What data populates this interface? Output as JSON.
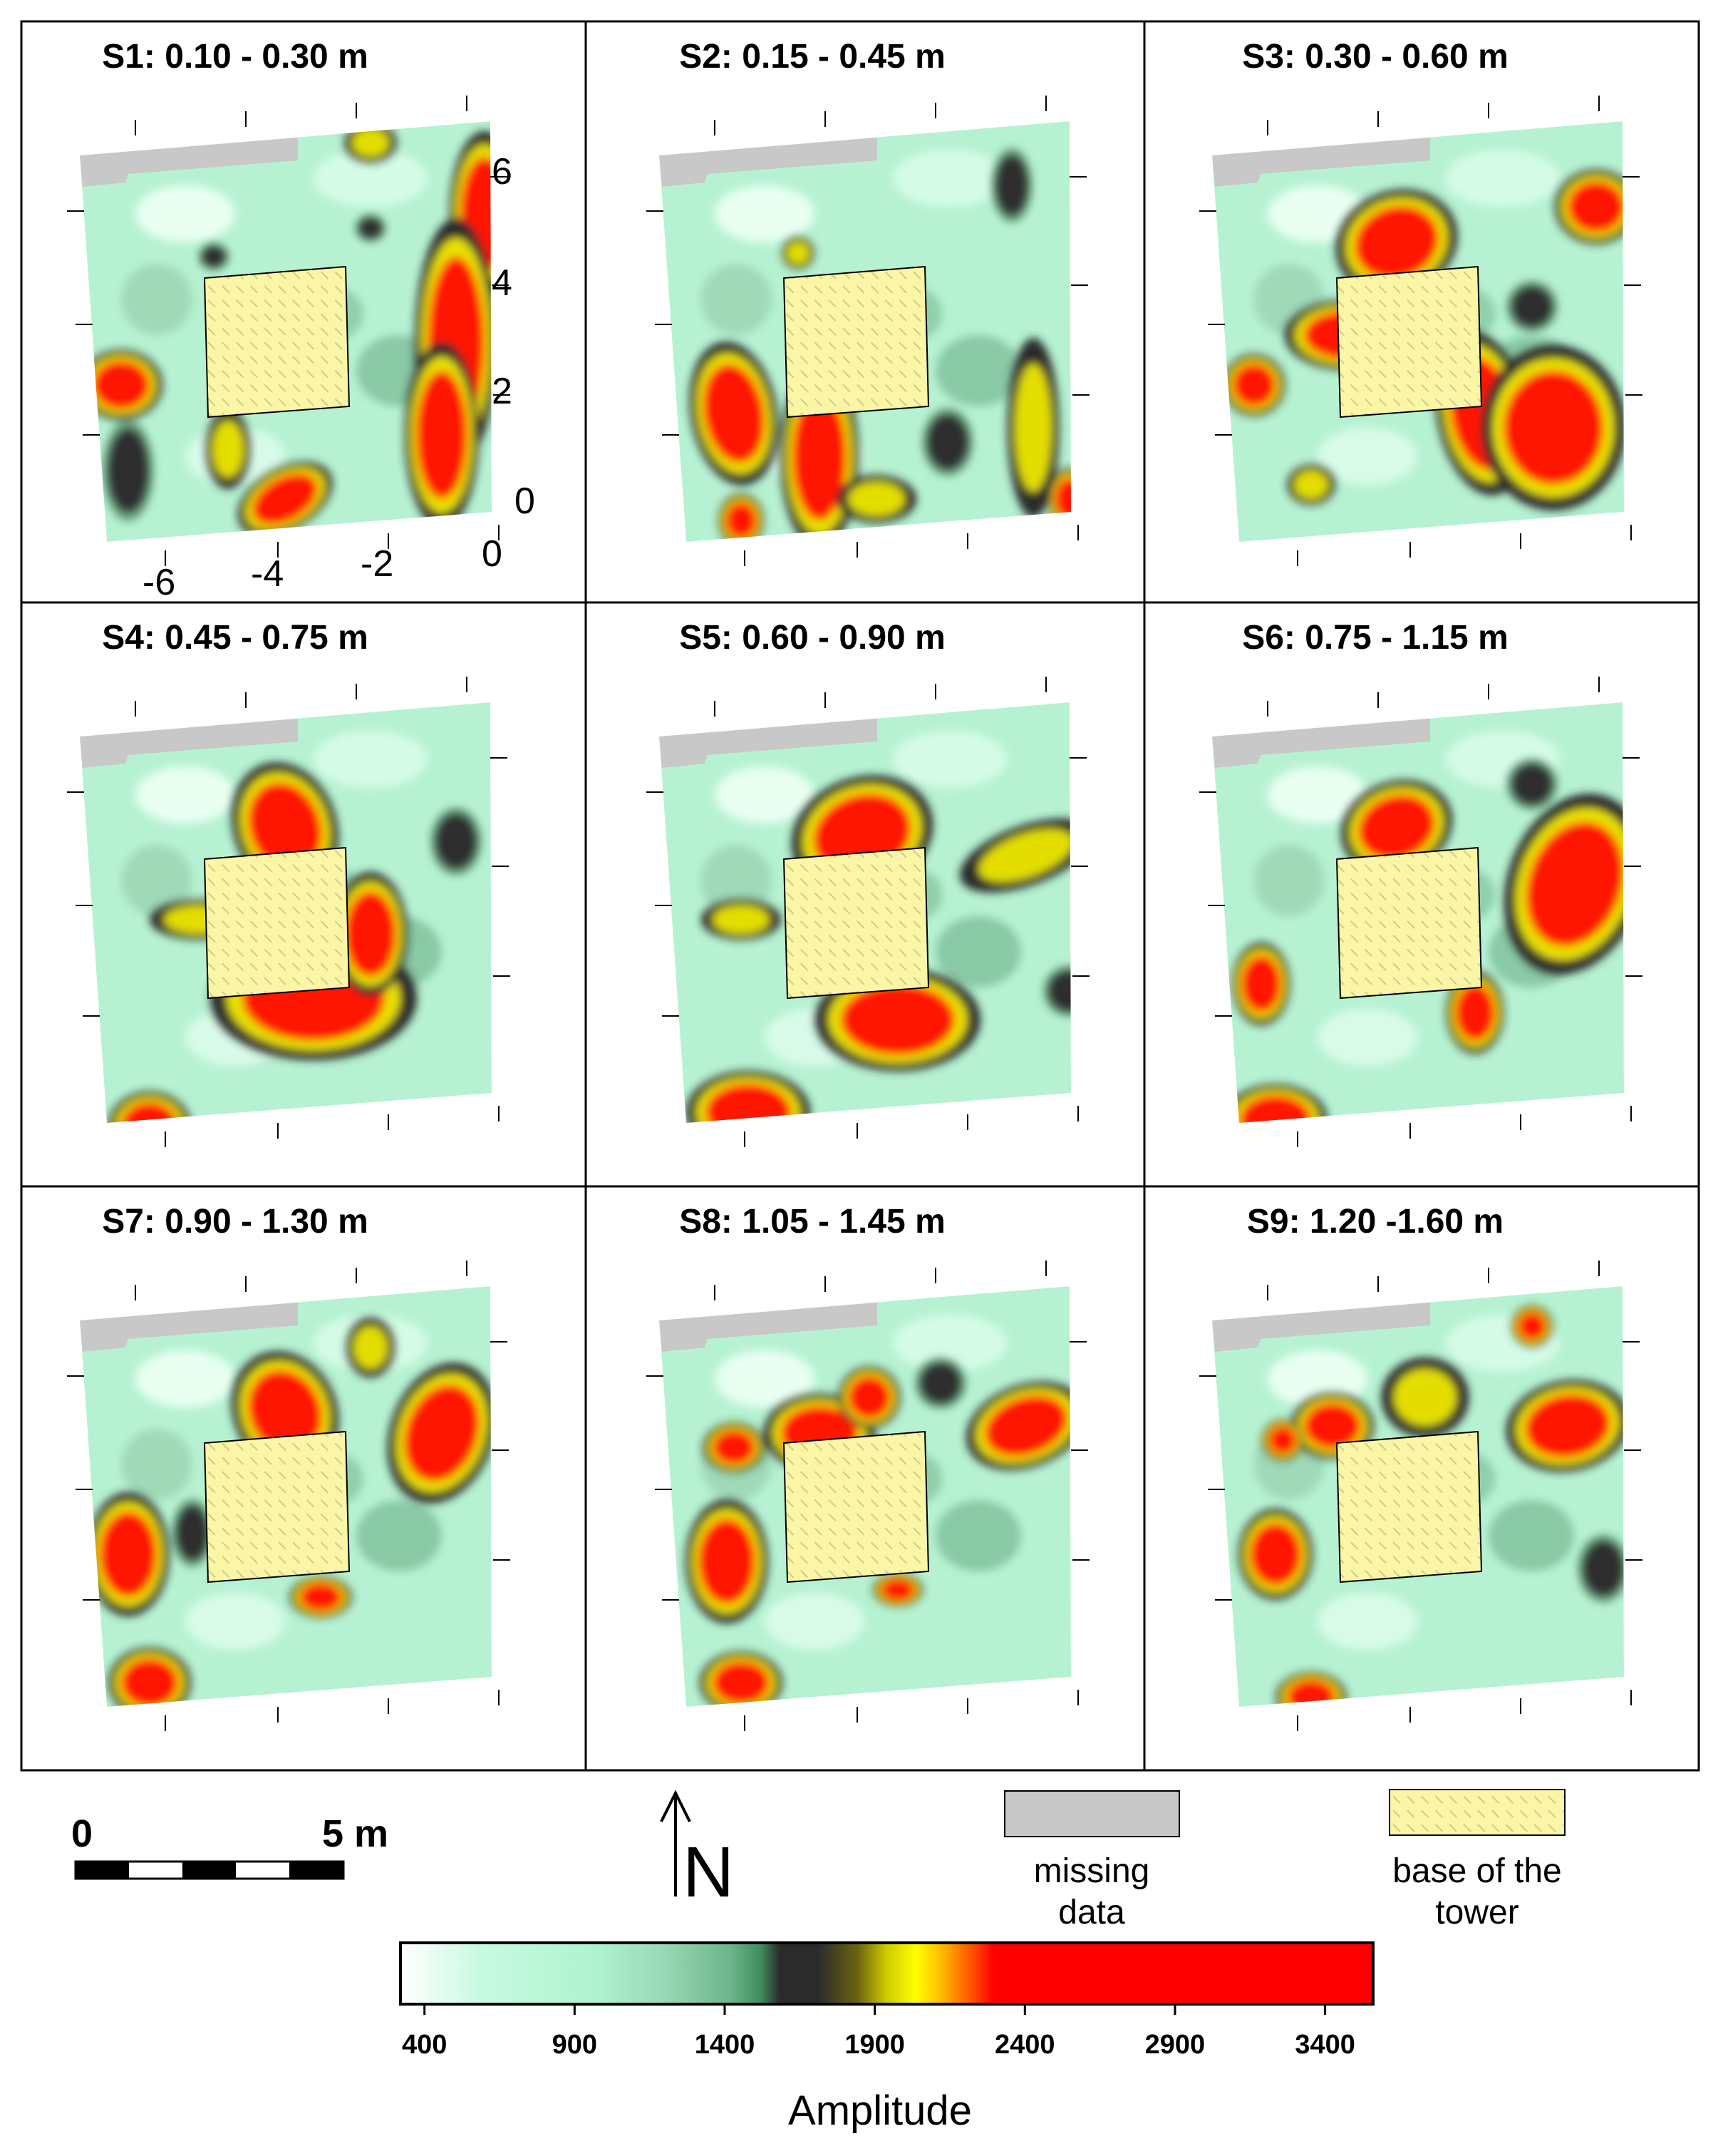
{
  "panels": [
    {
      "title": "S1: 0.10 - 0.30 m"
    },
    {
      "title": "S2: 0.15 - 0.45 m"
    },
    {
      "title": "S3: 0.30 - 0.60 m"
    },
    {
      "title": "S4: 0.45 - 0.75 m"
    },
    {
      "title": "S5: 0.60 - 0.90 m"
    },
    {
      "title": "S6: 0.75 - 1.15 m"
    },
    {
      "title": "S7: 0.90 - 1.30 m"
    },
    {
      "title": "S8: 1.05 - 1.45 m"
    },
    {
      "title": "S9: 1.20 -1.60 m"
    }
  ],
  "axes": {
    "y_ticks": [
      "6",
      "4",
      "2",
      "0"
    ],
    "x_ticks": [
      "-6",
      "-4",
      "-2",
      "0"
    ]
  },
  "scale_bar": {
    "start_label": "0",
    "end_label": "5 m"
  },
  "north_arrow": {
    "label": "N"
  },
  "legend": {
    "missing_data": "missing data",
    "missing_data_color": "#c8c8c8",
    "tower_base": "base of the tower",
    "tower_base_color": "#fbf5a6"
  },
  "colorbar": {
    "title": "Amplitude",
    "ticks": [
      "400",
      "900",
      "1400",
      "1900",
      "2400",
      "2900",
      "3400"
    ],
    "range": [
      320,
      3560
    ],
    "colors": [
      "#ffffff",
      "#b3f7d3",
      "#6fbf91",
      "#2b2b2b",
      "#f5f200",
      "#ff1a00",
      "#ff0000"
    ]
  }
}
